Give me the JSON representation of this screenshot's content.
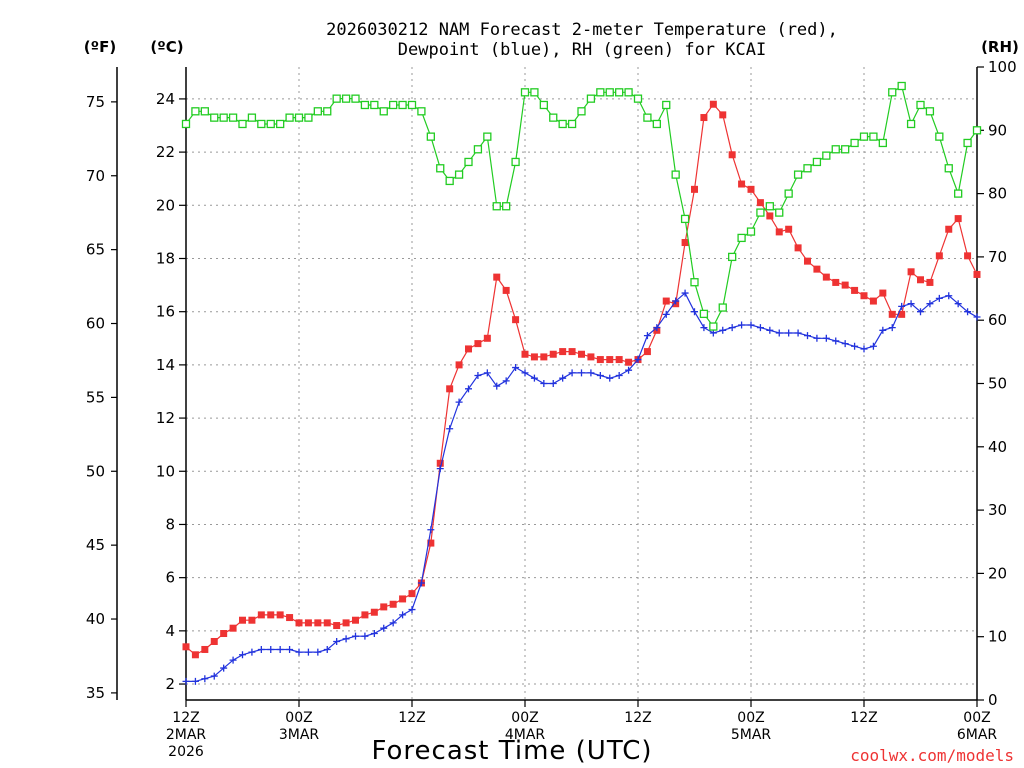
{
  "chart_data": {
    "type": "line",
    "title_line1": "2026030212 NAM Forecast 2-meter Temperature (red),",
    "title_line2": "Dewpoint (blue), RH (green) for KCAI",
    "xlabel": "Forecast Time (UTC)",
    "credit": "coolwx.com/models",
    "units": {
      "left_outer": "(ºF)",
      "left_inner": "(ºC)",
      "right": "(RH)"
    },
    "y_celsius": {
      "min": 1.4,
      "max": 25.2,
      "ticks": [
        "2",
        "4",
        "6",
        "8",
        "10",
        "12",
        "14",
        "16",
        "18",
        "20",
        "22",
        "24"
      ]
    },
    "y_fahrenheit": {
      "ticks": [
        "35",
        "40",
        "45",
        "50",
        "55",
        "60",
        "65",
        "70",
        "75"
      ]
    },
    "y_rh": {
      "min": 0,
      "max": 100,
      "ticks": [
        "0",
        "10",
        "20",
        "30",
        "40",
        "50",
        "60",
        "70",
        "80",
        "90",
        "100"
      ]
    },
    "x_hours": {
      "min": 0,
      "max": 84
    },
    "x_ticks": [
      {
        "hour": 0,
        "lines": [
          "12Z",
          "2MAR",
          "2026"
        ]
      },
      {
        "hour": 12,
        "lines": [
          "00Z",
          "3MAR"
        ]
      },
      {
        "hour": 24,
        "lines": [
          "12Z"
        ]
      },
      {
        "hour": 36,
        "lines": [
          "00Z",
          "4MAR"
        ]
      },
      {
        "hour": 48,
        "lines": [
          "12Z"
        ]
      },
      {
        "hour": 60,
        "lines": [
          "00Z",
          "5MAR"
        ]
      },
      {
        "hour": 72,
        "lines": [
          "12Z"
        ]
      },
      {
        "hour": 84,
        "lines": [
          "00Z",
          "6MAR"
        ]
      }
    ],
    "colors": {
      "temperature": "#ee3333",
      "dewpoint": "#2233dd",
      "rh": "#22cc22"
    },
    "series": [
      {
        "name": "Temperature",
        "units": "°C",
        "values": [
          3.4,
          3.1,
          3.3,
          3.6,
          3.9,
          4.1,
          4.4,
          4.4,
          4.6,
          4.6,
          4.6,
          4.5,
          4.3,
          4.3,
          4.3,
          4.3,
          4.2,
          4.3,
          4.4,
          4.6,
          4.7,
          4.9,
          5.0,
          5.2,
          5.4,
          5.8,
          7.3,
          10.3,
          13.1,
          14.0,
          14.6,
          14.8,
          15.0,
          17.3,
          16.8,
          15.7,
          14.4,
          14.3,
          14.3,
          14.4,
          14.5,
          14.5,
          14.4,
          14.3,
          14.2,
          14.2,
          14.2,
          14.1,
          14.2,
          14.5,
          15.3,
          16.4,
          16.3,
          18.6,
          20.6,
          23.3,
          23.8,
          23.4,
          21.9,
          20.8,
          20.6,
          20.1,
          19.6,
          19.0,
          19.1,
          18.4,
          17.9,
          17.6,
          17.3,
          17.1,
          17.0,
          16.8,
          16.6,
          16.4,
          16.7,
          15.9,
          15.9,
          17.5,
          17.2,
          17.1,
          18.1,
          19.1,
          19.5,
          18.1,
          17.4
        ]
      },
      {
        "name": "Dewpoint",
        "units": "°C",
        "values": [
          2.1,
          2.1,
          2.2,
          2.3,
          2.6,
          2.9,
          3.1,
          3.2,
          3.3,
          3.3,
          3.3,
          3.3,
          3.2,
          3.2,
          3.2,
          3.3,
          3.6,
          3.7,
          3.8,
          3.8,
          3.9,
          4.1,
          4.3,
          4.6,
          4.8,
          5.8,
          7.8,
          10.1,
          11.6,
          12.6,
          13.1,
          13.6,
          13.7,
          13.2,
          13.4,
          13.9,
          13.7,
          13.5,
          13.3,
          13.3,
          13.5,
          13.7,
          13.7,
          13.7,
          13.6,
          13.5,
          13.6,
          13.8,
          14.2,
          15.1,
          15.4,
          15.9,
          16.4,
          16.7,
          16.0,
          15.4,
          15.2,
          15.3,
          15.4,
          15.5,
          15.5,
          15.4,
          15.3,
          15.2,
          15.2,
          15.2,
          15.1,
          15.0,
          15.0,
          14.9,
          14.8,
          14.7,
          14.6,
          14.7,
          15.3,
          15.4,
          16.2,
          16.3,
          16.0,
          16.3,
          16.5,
          16.6,
          16.3,
          16.0,
          15.8
        ]
      },
      {
        "name": "RH",
        "units": "%",
        "values": [
          91,
          93,
          93,
          92,
          92,
          92,
          91,
          92,
          91,
          91,
          91,
          92,
          92,
          92,
          93,
          93,
          95,
          95,
          95,
          94,
          94,
          93,
          94,
          94,
          94,
          93,
          89,
          84,
          82,
          83,
          85,
          87,
          89,
          78,
          78,
          85,
          96,
          96,
          94,
          92,
          91,
          91,
          93,
          95,
          96,
          96,
          96,
          96,
          95,
          92,
          91,
          94,
          83,
          76,
          66,
          61,
          59,
          62,
          70,
          73,
          74,
          77,
          78,
          77,
          80,
          83,
          84,
          85,
          86,
          87,
          87,
          88,
          89,
          89,
          88,
          96,
          97,
          91,
          94,
          93,
          89,
          84,
          80,
          88,
          90
        ]
      }
    ]
  }
}
